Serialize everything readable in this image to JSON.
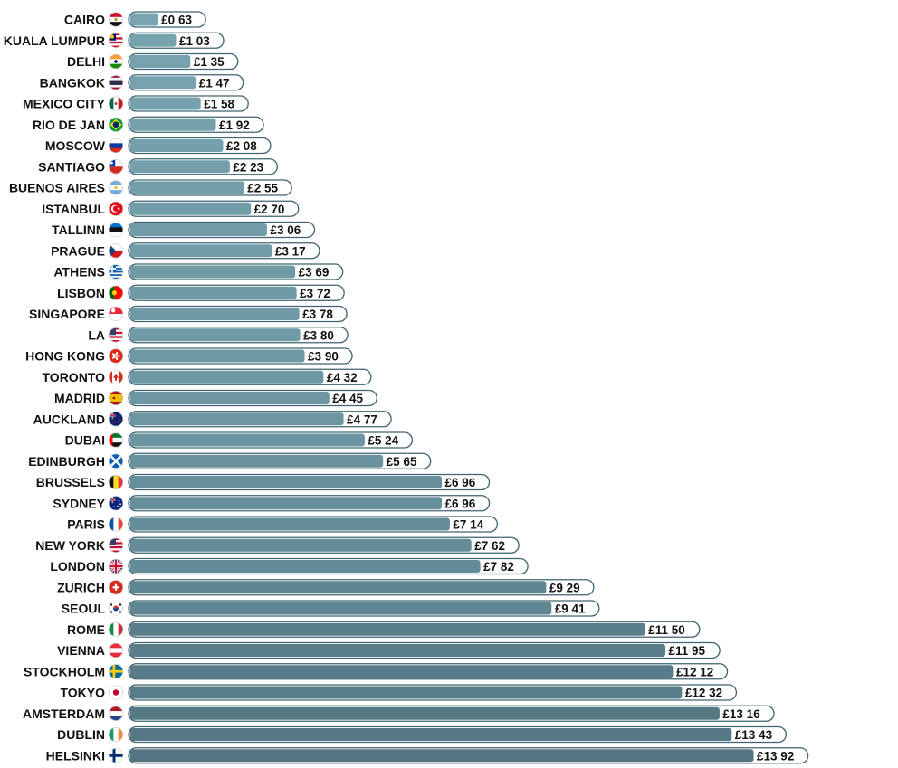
{
  "chart_data": {
    "type": "bar",
    "orientation": "horizontal",
    "title": "",
    "xlabel": "",
    "ylabel": "",
    "currency": "£",
    "xlim": [
      0,
      14
    ],
    "grid": false,
    "legend": "none",
    "colors": {
      "bar_light": "#7aa7b3",
      "bar_dark": "#537682",
      "outline": "#3f6470"
    },
    "categories": [
      "CAIRO",
      "KUALA LUMPUR",
      "DELHI",
      "BANGKOK",
      "MEXICO CITY",
      "RIO DE JAN",
      "MOSCOW",
      "SANTIAGO",
      "BUENOS AIRES",
      "ISTANBUL",
      "TALLINN",
      "PRAGUE",
      "ATHENS",
      "LISBON",
      "SINGAPORE",
      "LA",
      "HONG KONG",
      "TORONTO",
      "MADRID",
      "AUCKLAND",
      "DUBAI",
      "EDINBURGH",
      "BRUSSELS",
      "SYDNEY",
      "PARIS",
      "NEW YORK",
      "LONDON",
      "ZURICH",
      "SEOUL",
      "ROME",
      "VIENNA",
      "STOCKHOLM",
      "TOKYO",
      "AMSTERDAM",
      "DUBLIN",
      "HELSINKI"
    ],
    "values": [
      0.63,
      1.03,
      1.35,
      1.47,
      1.58,
      1.92,
      2.08,
      2.23,
      2.55,
      2.7,
      3.06,
      3.17,
      3.69,
      3.72,
      3.78,
      3.8,
      3.9,
      4.32,
      4.45,
      4.77,
      5.24,
      5.65,
      6.96,
      6.96,
      7.14,
      7.62,
      7.82,
      9.29,
      9.41,
      11.5,
      11.95,
      12.12,
      12.32,
      13.16,
      13.43,
      13.92
    ],
    "value_labels": [
      "£0 63",
      "£1 03",
      "£1 35",
      "£1 47",
      "£1 58",
      "£1 92",
      "£2 08",
      "£2 23",
      "£2 55",
      "£2 70",
      "£3 06",
      "£3 17",
      "£3 69",
      "£3 72",
      "£3 78",
      "£3 80",
      "£3 90",
      "£4 32",
      "£4 45",
      "£4 77",
      "£5 24",
      "£5 65",
      "£6 96",
      "£6 96",
      "£7 14",
      "£7 62",
      "£7 82",
      "£9 29",
      "£9 41",
      "£11 50",
      "£11 95",
      "£12 12",
      "£12 32",
      "£13 16",
      "£13 43",
      "£13 92"
    ],
    "flags": [
      "egypt-flag-icon",
      "malaysia-flag-icon",
      "india-flag-icon",
      "thailand-flag-icon",
      "mexico-flag-icon",
      "brazil-flag-icon",
      "russia-flag-icon",
      "chile-flag-icon",
      "argentina-flag-icon",
      "turkey-flag-icon",
      "estonia-flag-icon",
      "czech-flag-icon",
      "greece-flag-icon",
      "portugal-flag-icon",
      "singapore-flag-icon",
      "usa-flag-icon",
      "hong-kong-flag-icon",
      "canada-flag-icon",
      "spain-flag-icon",
      "new-zealand-flag-icon",
      "uae-flag-icon",
      "scotland-flag-icon",
      "belgium-flag-icon",
      "australia-flag-icon",
      "france-flag-icon",
      "usa-flag-icon",
      "uk-flag-icon",
      "switzerland-flag-icon",
      "south-korea-flag-icon",
      "italy-flag-icon",
      "austria-flag-icon",
      "sweden-flag-icon",
      "japan-flag-icon",
      "netherlands-flag-icon",
      "ireland-flag-icon",
      "finland-flag-icon"
    ]
  }
}
